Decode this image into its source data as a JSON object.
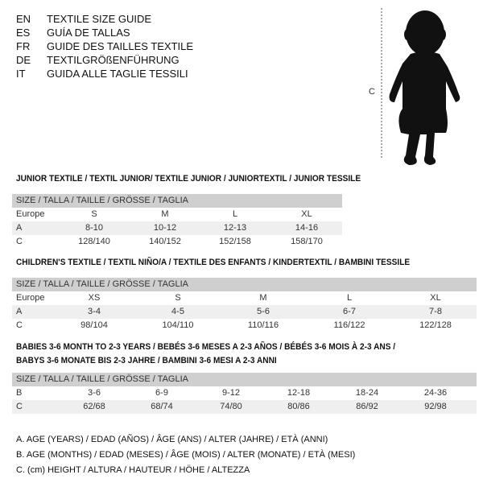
{
  "languages": [
    {
      "code": "EN",
      "title": "TEXTILE SIZE GUIDE"
    },
    {
      "code": "ES",
      "title": "GUÍA DE TALLAS"
    },
    {
      "code": "FR",
      "title": "GUIDE DES TAILLES TEXTILE"
    },
    {
      "code": "DE",
      "title": "TEXTILGRÖßENFÜHRUNG"
    },
    {
      "code": "IT",
      "title": "GUIDA ALLE TAGLIE TESSILI"
    }
  ],
  "figure": {
    "measure_label": "C"
  },
  "junior": {
    "title": "JUNIOR TEXTILE / TEXTIL JUNIOR/ TEXTILE JUNIOR / JUNIORTEXTIL / JUNIOR TESSILE",
    "header": "SIZE / TALLA / TAILLE / GRÖSSE / TAGLIA",
    "rows": [
      {
        "label": "Europe",
        "values": [
          "S",
          "M",
          "L",
          "XL"
        ]
      },
      {
        "label": "A",
        "values": [
          "8-10",
          "10-12",
          "12-13",
          "14-16"
        ]
      },
      {
        "label": "C",
        "values": [
          "128/140",
          "140/152",
          "152/158",
          "158/170"
        ]
      }
    ]
  },
  "children": {
    "title": "CHILDREN'S TEXTILE / TEXTIL NIÑO/A / TEXTILE DES ENFANTS / KINDERTEXTIL / BAMBINI TESSILE",
    "header": "SIZE / TALLA / TAILLE / GRÖSSE / TAGLIA",
    "rows": [
      {
        "label": "Europe",
        "values": [
          "XS",
          "S",
          "M",
          "L",
          "XL"
        ]
      },
      {
        "label": "A",
        "values": [
          "3-4",
          "4-5",
          "5-6",
          "6-7",
          "7-8"
        ]
      },
      {
        "label": "C",
        "values": [
          "98/104",
          "104/110",
          "110/116",
          "116/122",
          "122/128"
        ]
      }
    ]
  },
  "babies": {
    "title_line1": "BABIES 3-6 MONTH TO 2-3 YEARS / BEBÉS 3-6 MESES A 2-3 AÑOS / BÉBÉS 3-6 MOIS À 2-3 ANS /",
    "title_line2": "BABYS 3-6 MONATE BIS 2-3 JAHRE / BAMBINI 3-6 MESI A 2-3 ANNI",
    "header": "SIZE / TALLA / TAILLE / GRÖSSE / TAGLIA",
    "rows": [
      {
        "label": "B",
        "values": [
          "3-6",
          "6-9",
          "9-12",
          "12-18",
          "18-24",
          "24-36"
        ]
      },
      {
        "label": "C",
        "values": [
          "62/68",
          "68/74",
          "74/80",
          "80/86",
          "86/92",
          "92/98"
        ]
      }
    ]
  },
  "legend": [
    "A. AGE (YEARS) / EDAD (AÑOS) / ÂGE (ANS) / ALTER (JAHRE) / ETÀ (ANNI)",
    "B. AGE (MONTHS) / EDAD (MESES) / ÂGE (MOIS) / ALTER (MONATE) / ETÀ (MESI)",
    "C. (cm) HEIGHT / ALTURA / HAUTEUR / HÖHE / ALTEZZA"
  ]
}
